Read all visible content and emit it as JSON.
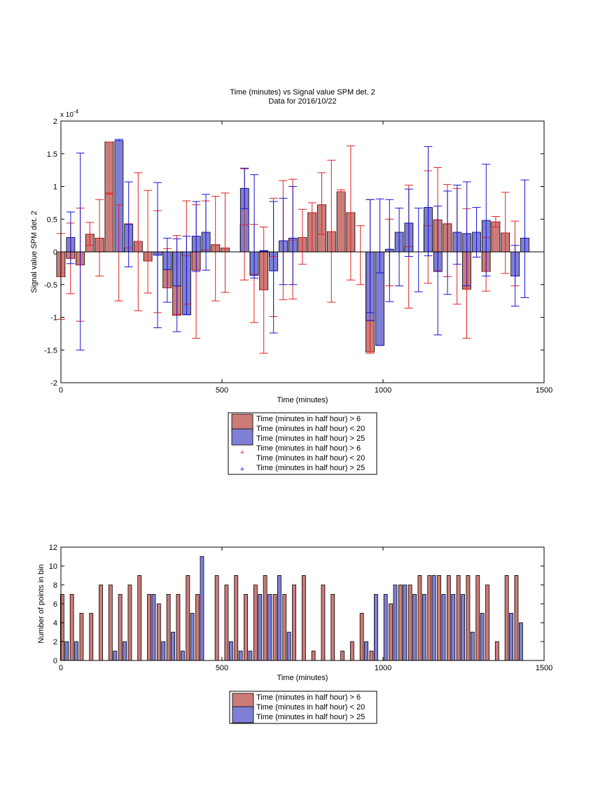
{
  "chart_data": [
    {
      "type": "bar",
      "title": "Time (minutes) vs Signal value SPM det. 2",
      "subtitle": "Data for 2016/10/22",
      "xlabel": "Time (minutes)",
      "ylabel": "Signal value SPM det. 2",
      "y_exponent": "x 10",
      "y_exponent_power": "-4",
      "xlim": [
        0,
        1500
      ],
      "ylim": [
        -2,
        2
      ],
      "x_ticks": [
        0,
        500,
        1000,
        1500
      ],
      "y_ticks": [
        -2,
        -1.5,
        -1,
        -0.5,
        0,
        0.5,
        1,
        1.5,
        2
      ],
      "grid": false,
      "legend_position": "below",
      "legend": [
        "Time (minutes in half hour) > 6",
        "Time (minutes in half hour) < 20",
        "Time (minutes in half hour) > 25",
        "Time (minutes in half hour) > 6",
        "Time (minutes in half hour) < 20",
        "Time (minutes in half hour) > 25"
      ],
      "colors": {
        "red_bar": "#cd7b78",
        "blue_bar": "#7f7fd6",
        "red_err": "#e02020",
        "blue_err": "#1515d6"
      },
      "series": [
        {
          "color": "red",
          "x": [
            15,
            45,
            75,
            105,
            135,
            165,
            195,
            225,
            255,
            285,
            315,
            345,
            375,
            405,
            435,
            465,
            495,
            525,
            555,
            585,
            615,
            645,
            675,
            705,
            735,
            765,
            795,
            825,
            855,
            885,
            915,
            945,
            975,
            1005,
            1035,
            1065,
            1095,
            1125,
            1155,
            1185,
            1215,
            1245,
            1275,
            1305,
            1335,
            1365,
            1395,
            1425
          ],
          "values": [
            -0.38,
            -0.1,
            -0.2,
            0.27,
            0.21,
            1.68,
            0,
            0.06,
            0.16,
            -0.14,
            0,
            -0.55,
            -0.97,
            -0.06,
            -0.28,
            0.03,
            0.11,
            0.06,
            0,
            0.41,
            -0.34,
            -0.58,
            -0.07,
            0,
            0.18,
            0.22,
            0.6,
            0.72,
            0.31,
            0.92,
            0.6,
            0,
            -1.53,
            0,
            0,
            0,
            0.08,
            0,
            0.4,
            0.49,
            0.43,
            0,
            -0.57,
            0,
            -0.3,
            0.46,
            0.29,
            0
          ],
          "err_low": [
            -1.03,
            -0.64,
            -1.06,
            0.1,
            -0.37,
            0.9,
            -0.75,
            0,
            -0.9,
            -0.63,
            -0.93,
            0,
            -0.95,
            -0.8,
            -1.32,
            0,
            -0.75,
            -0.62,
            0,
            -0.43,
            -1.08,
            -1.55,
            -0.99,
            -0.73,
            -0.72,
            -0.19,
            0,
            0.27,
            -0.77,
            0.92,
            -0.43,
            -0.5,
            -1.55,
            0,
            -0.52,
            0,
            -0.86,
            0,
            -0.48,
            -0.29,
            -0.38,
            -0.8,
            -1.32,
            0,
            -0.6,
            0.38,
            -0.33,
            -0.52
          ],
          "err_high": [
            0.28,
            0.44,
            0.67,
            0.45,
            0.8,
            0.88,
            0.72,
            0.43,
            1.21,
            0.94,
            0.63,
            0.05,
            0.25,
            0.78,
            0.72,
            0.78,
            0.85,
            0.9,
            0,
            1.27,
            0.42,
            0.38,
            0.82,
            1.09,
            1.11,
            0.65,
            0.75,
            1.21,
            1.4,
            0.95,
            1.62,
            0.4,
            0.8,
            0,
            0.5,
            0,
            1.02,
            0,
            1.24,
            1.29,
            1.03,
            0.97,
            0.66,
            0,
            0.22,
            0.54,
            0.91,
            0.47
          ]
        },
        {
          "color": "blue",
          "x": [
            15,
            45,
            75,
            105,
            135,
            165,
            195,
            225,
            255,
            285,
            315,
            345,
            375,
            405,
            435,
            465,
            495,
            525,
            555,
            585,
            615,
            645,
            675,
            705,
            735,
            765,
            795,
            825,
            855,
            885,
            915,
            945,
            975,
            1005,
            1035,
            1065,
            1095,
            1125,
            1155,
            1185,
            1215,
            1245,
            1275,
            1305,
            1335,
            1365,
            1395,
            1425
          ],
          "values": [
            0.22,
            0,
            0,
            0,
            0,
            1.7,
            0.42,
            0,
            0,
            -0.05,
            -0.27,
            -0.52,
            -0.96,
            0.24,
            0.3,
            0,
            0,
            0,
            0.97,
            -0.36,
            0.01,
            -0.29,
            0.17,
            0.21,
            0,
            0,
            0,
            0,
            0,
            0,
            0,
            -1.05,
            -1.43,
            0.04,
            0.3,
            0.44,
            0,
            0.68,
            -0.3,
            0,
            0.3,
            0.28,
            0.3,
            0.48,
            0,
            0,
            -0.37,
            0.21
          ],
          "err_low": [
            -0.18,
            -1.5,
            0,
            0,
            0,
            1.7,
            -0.23,
            0,
            0,
            -1.16,
            -0.77,
            -1.22,
            -0.96,
            -0.3,
            -0.28,
            0,
            0,
            0,
            0.66,
            -0.4,
            0,
            -1.24,
            -0.5,
            -0.5,
            0,
            0,
            0,
            0,
            0,
            0,
            0,
            -0.93,
            -0.32,
            -0.76,
            -0.52,
            -0.07,
            -0.61,
            -0.06,
            -1.27,
            -0.65,
            -0.19,
            -0.52,
            -0.08,
            -0.37,
            0,
            0,
            -0.83,
            -0.7
          ],
          "err_high": [
            0.61,
            1.51,
            0,
            0,
            0,
            1.72,
            1.07,
            0,
            0,
            1.06,
            0.21,
            0.2,
            0.24,
            0.77,
            0.88,
            0,
            0,
            0,
            1.28,
            1.18,
            0.02,
            0.77,
            0.82,
            1.0,
            0,
            0,
            0,
            0,
            0,
            0,
            0,
            0.8,
            0.81,
            0.8,
            0.67,
            0.96,
            0.67,
            1.61,
            0.7,
            0.93,
            1.02,
            1.07,
            0.68,
            1.34,
            0,
            0,
            0.1,
            1.1
          ]
        }
      ]
    },
    {
      "type": "bar",
      "xlabel": "Time (minutes)",
      "ylabel": "Number of points in bin",
      "xlim": [
        0,
        1500
      ],
      "ylim": [
        0,
        12
      ],
      "x_ticks": [
        0,
        500,
        1000,
        1500
      ],
      "y_ticks": [
        0,
        2,
        4,
        6,
        8,
        10,
        12
      ],
      "grid": false,
      "legend_position": "below",
      "legend": [
        "Time (minutes in half hour) > 6",
        "Time (minutes in half hour) < 20",
        "Time (minutes in half hour) > 25"
      ],
      "colors": {
        "red_bar": "#cd7b78",
        "blue_bar": "#7f7fd6"
      },
      "series": [
        {
          "color": "red",
          "x": [
            4,
            34,
            64,
            94,
            124,
            154,
            184,
            214,
            244,
            274,
            304,
            334,
            364,
            394,
            424,
            454,
            484,
            514,
            544,
            574,
            604,
            634,
            664,
            694,
            724,
            754,
            784,
            814,
            844,
            874,
            904,
            934,
            964,
            994,
            1024,
            1054,
            1084,
            1114,
            1144,
            1174,
            1204,
            1234,
            1264,
            1294,
            1324,
            1354,
            1384,
            1414
          ],
          "values": [
            7,
            7,
            5,
            5,
            8,
            8,
            7,
            8,
            9,
            7,
            6,
            7,
            7,
            9,
            7,
            0,
            9,
            8,
            9,
            7,
            8,
            9,
            7,
            7,
            8,
            9,
            1,
            8,
            7,
            1,
            2,
            5,
            1,
            0,
            6,
            8,
            8,
            9,
            9,
            9,
            9,
            9,
            9,
            9,
            8,
            2,
            9,
            9
          ]
        },
        {
          "color": "blue",
          "x": [
            18,
            48,
            78,
            108,
            138,
            168,
            198,
            228,
            258,
            288,
            318,
            348,
            378,
            408,
            438,
            468,
            498,
            528,
            558,
            588,
            618,
            648,
            678,
            708,
            738,
            768,
            798,
            828,
            858,
            888,
            918,
            948,
            978,
            1008,
            1038,
            1068,
            1098,
            1128,
            1158,
            1188,
            1218,
            1248,
            1278,
            1308,
            1338,
            1368,
            1398,
            1428
          ],
          "values": [
            2,
            2,
            0,
            0,
            0,
            1,
            2,
            0,
            0,
            7,
            2,
            3,
            1,
            5,
            11,
            0,
            0,
            2,
            1,
            1,
            7,
            7,
            9,
            3,
            0,
            0,
            0,
            0,
            0,
            0,
            0,
            2,
            7,
            7,
            8,
            8,
            7,
            7,
            9,
            7,
            7,
            7,
            3,
            5,
            0,
            0,
            5,
            4
          ]
        }
      ]
    }
  ]
}
